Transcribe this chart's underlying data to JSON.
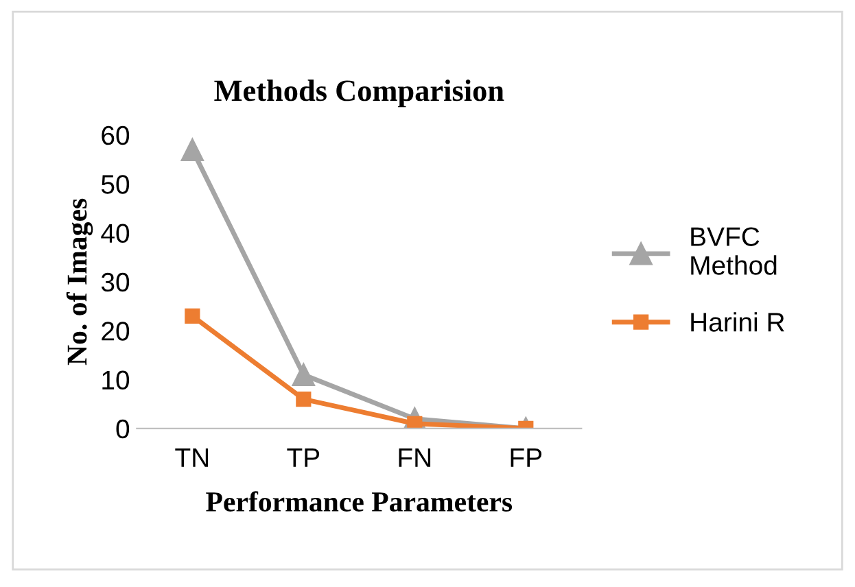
{
  "chart_data": {
    "type": "line",
    "title": "Methods Comparision",
    "xlabel": "Performance Parameters",
    "ylabel": "No. of Images",
    "categories": [
      "TN",
      "TP",
      "FN",
      "FP"
    ],
    "series": [
      {
        "name": "BVFC Method",
        "color": "#a5a5a5",
        "values": [
          57,
          11,
          2,
          0
        ],
        "marker": "triangle"
      },
      {
        "name": "Harini R",
        "color": "#ed7d31",
        "values": [
          23,
          6,
          1,
          0
        ],
        "marker": "square"
      }
    ],
    "ylim": [
      0,
      60
    ],
    "yticks": [
      0,
      10,
      20,
      30,
      40,
      50,
      60
    ],
    "grid": false,
    "legend": "right",
    "line_style": "solid"
  }
}
